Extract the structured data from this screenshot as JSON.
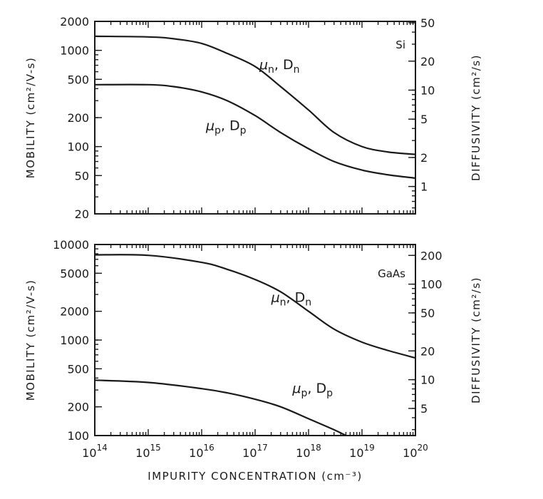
{
  "chart_data": [
    {
      "type": "line",
      "panel": "top",
      "material_label": "Si",
      "x_scale": "log",
      "y_scale": "log",
      "xlim": [
        100000000000000.0,
        1e+20
      ],
      "ylim": [
        20,
        2000
      ],
      "y2lim": [
        0.52,
        51.7
      ],
      "ylabel": "MOBILITY (cm²/V-s)",
      "y2label": "DIFFUSIVITY (cm²/s)",
      "y_ticks": [
        {
          "value": 2000,
          "label": "2000"
        },
        {
          "value": 1000,
          "label": "1000"
        },
        {
          "value": 500,
          "label": "500"
        },
        {
          "value": 200,
          "label": "200"
        },
        {
          "value": 100,
          "label": "100"
        },
        {
          "value": 50,
          "label": "50"
        },
        {
          "value": 20,
          "label": "20"
        }
      ],
      "y2_ticks": [
        {
          "value": 50,
          "label": "50"
        },
        {
          "value": 20,
          "label": "20"
        },
        {
          "value": 10,
          "label": "10"
        },
        {
          "value": 5,
          "label": "5"
        },
        {
          "value": 2,
          "label": "2"
        },
        {
          "value": 1,
          "label": "1"
        }
      ],
      "series": [
        {
          "name": "electrons",
          "label_main": "μ",
          "label_sub": "n",
          "label_sep": ", D",
          "label_sub2": "n",
          "label_at": [
            1.2e+17,
            640
          ],
          "x": [
            100000000000000.0,
            1000000000000000.0,
            3000000000000000.0,
            1e+16,
            3e+16,
            1e+17,
            3e+17,
            1e+18,
            3e+18,
            1e+19,
            3e+19,
            1e+20
          ],
          "values": [
            1400,
            1380,
            1320,
            1180,
            930,
            680,
            420,
            240,
            140,
            100,
            88,
            83
          ]
        },
        {
          "name": "holes",
          "label_main": "μ",
          "label_sub": "p",
          "label_sep": ", D",
          "label_sub2": "p",
          "label_at": [
            1.2e+16,
            148
          ],
          "x": [
            100000000000000.0,
            1000000000000000.0,
            3000000000000000.0,
            1e+16,
            3e+16,
            1e+17,
            3e+17,
            1e+18,
            3e+18,
            1e+19,
            3e+19,
            1e+20
          ],
          "values": [
            440,
            440,
            420,
            370,
            300,
            210,
            140,
            95,
            70,
            57,
            51,
            47
          ]
        }
      ]
    },
    {
      "type": "line",
      "panel": "bottom",
      "material_label": "GaAs",
      "x_scale": "log",
      "y_scale": "log",
      "xlim": [
        100000000000000.0,
        1e+20
      ],
      "ylim": [
        100,
        10000
      ],
      "y2lim": [
        2.6,
        260
      ],
      "ylabel": "MOBILITY (cm²/V-s)",
      "y2label": "DIFFUSIVITY (cm²/s)",
      "xlabel": "IMPURITY CONCENTRATION (cm⁻³)",
      "y_ticks": [
        {
          "value": 10000,
          "label": "10000"
        },
        {
          "value": 5000,
          "label": "5000"
        },
        {
          "value": 2000,
          "label": "2000"
        },
        {
          "value": 1000,
          "label": "1000"
        },
        {
          "value": 500,
          "label": "500"
        },
        {
          "value": 200,
          "label": "200"
        },
        {
          "value": 100,
          "label": "100"
        }
      ],
      "y2_ticks": [
        {
          "value": 200,
          "label": "200"
        },
        {
          "value": 100,
          "label": "100"
        },
        {
          "value": 50,
          "label": "50"
        },
        {
          "value": 20,
          "label": "20"
        },
        {
          "value": 10,
          "label": "10"
        },
        {
          "value": 5,
          "label": "5"
        }
      ],
      "x_ticks": [
        {
          "value": 100000000000000.0,
          "base": "10",
          "exp": "14"
        },
        {
          "value": 1000000000000000.0,
          "base": "10",
          "exp": "15"
        },
        {
          "value": 1e+16,
          "base": "10",
          "exp": "16"
        },
        {
          "value": 1e+17,
          "base": "10",
          "exp": "17"
        },
        {
          "value": 1e+18,
          "base": "10",
          "exp": "18"
        },
        {
          "value": 1e+19,
          "base": "10",
          "exp": "19"
        },
        {
          "value": 1e+20,
          "base": "10",
          "exp": "20"
        }
      ],
      "series": [
        {
          "name": "electrons",
          "label_main": "μ",
          "label_sub": "n",
          "label_sep": ", D",
          "label_sub2": "n",
          "label_at": [
            2e+17,
            2500
          ],
          "x": [
            100000000000000.0,
            1000000000000000.0,
            1e+16,
            3e+16,
            1e+17,
            3e+17,
            1e+18,
            3e+18,
            1e+19,
            3e+19,
            1e+20
          ],
          "values": [
            7800,
            7700,
            6500,
            5500,
            4300,
            3200,
            2000,
            1300,
            950,
            780,
            650
          ]
        },
        {
          "name": "holes",
          "label_main": "μ",
          "label_sub": "p",
          "label_sep": ", D",
          "label_sub2": "p",
          "label_at": [
            5e+17,
            280
          ],
          "x": [
            100000000000000.0,
            1000000000000000.0,
            1e+16,
            3e+16,
            1e+17,
            3e+17,
            1e+18,
            3e+18,
            5e+18
          ],
          "values": [
            380,
            360,
            310,
            280,
            240,
            200,
            150,
            115,
            100
          ]
        }
      ]
    }
  ]
}
